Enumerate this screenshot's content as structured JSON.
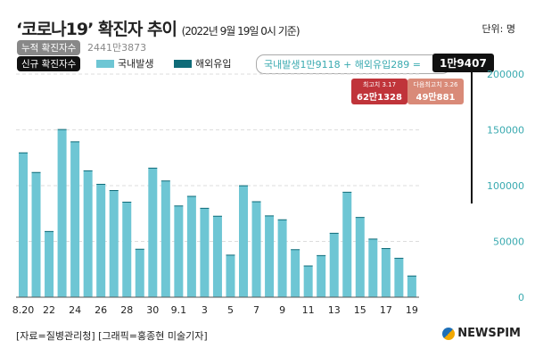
{
  "header": {
    "title": "‘코로나19’ 확진자 추이",
    "subtitle": "(2022년 9월 19일 0시 기준)",
    "unit": "단위: 명"
  },
  "cumulative": {
    "label": "누적 확진자수",
    "value": "2441만3873"
  },
  "new_cases": {
    "label": "신규 확진자수",
    "legend": [
      {
        "name": "국내발생",
        "color": "#6ec6d4"
      },
      {
        "name": "해외유입",
        "color": "#0f6b78"
      }
    ]
  },
  "formula": {
    "text": "국내발생1만9118 + 해외유입289 =",
    "total": "1만9407"
  },
  "peaks": [
    {
      "label": "최고치 3.17",
      "value": "62만1328",
      "color": "#c0343a"
    },
    {
      "label": "다음최고치 3.26",
      "value": "49만881",
      "color": "#d98a78"
    }
  ],
  "source": "[자료=질병관리청] [그래픽=홍종현 미술기자]",
  "logo": "NEWSPIM",
  "chart_data": {
    "type": "bar",
    "title": "‘코로나19’ 확진자 추이",
    "ylim": [
      0,
      200000
    ],
    "yticks": [
      0,
      50000,
      100000,
      150000,
      200000
    ],
    "xtick_labels": [
      "8.20",
      "22",
      "24",
      "26",
      "28",
      "30",
      "9.1",
      "3",
      "5",
      "7",
      "9",
      "11",
      "13",
      "15",
      "17",
      "19"
    ],
    "categories": [
      "8.20",
      "8.21",
      "8.22",
      "8.23",
      "8.24",
      "8.25",
      "8.26",
      "8.27",
      "8.28",
      "8.29",
      "8.30",
      "8.31",
      "9.1",
      "9.2",
      "9.3",
      "9.4",
      "9.5",
      "9.6",
      "9.7",
      "9.8",
      "9.9",
      "9.10",
      "9.11",
      "9.12",
      "9.13",
      "9.14",
      "9.15",
      "9.16",
      "9.17",
      "9.18",
      "9.19"
    ],
    "series": [
      {
        "name": "국내발생",
        "values": [
          129400,
          111700,
          59000,
          150200,
          139300,
          113300,
          101100,
          95600,
          85200,
          43100,
          115600,
          104000,
          81600,
          90300,
          79700,
          72700,
          37800,
          99800,
          85500,
          72900,
          69400,
          42700,
          28200,
          37400,
          57300,
          93900,
          71400,
          52000,
          43600,
          35000,
          19118
        ]
      },
      {
        "name": "해외유입",
        "values": [
          400,
          500,
          300,
          500,
          400,
          400,
          500,
          400,
          400,
          300,
          500,
          600,
          600,
          500,
          400,
          300,
          300,
          500,
          500,
          400,
          400,
          300,
          200,
          300,
          400,
          600,
          500,
          500,
          400,
          300,
          289
        ]
      }
    ]
  }
}
